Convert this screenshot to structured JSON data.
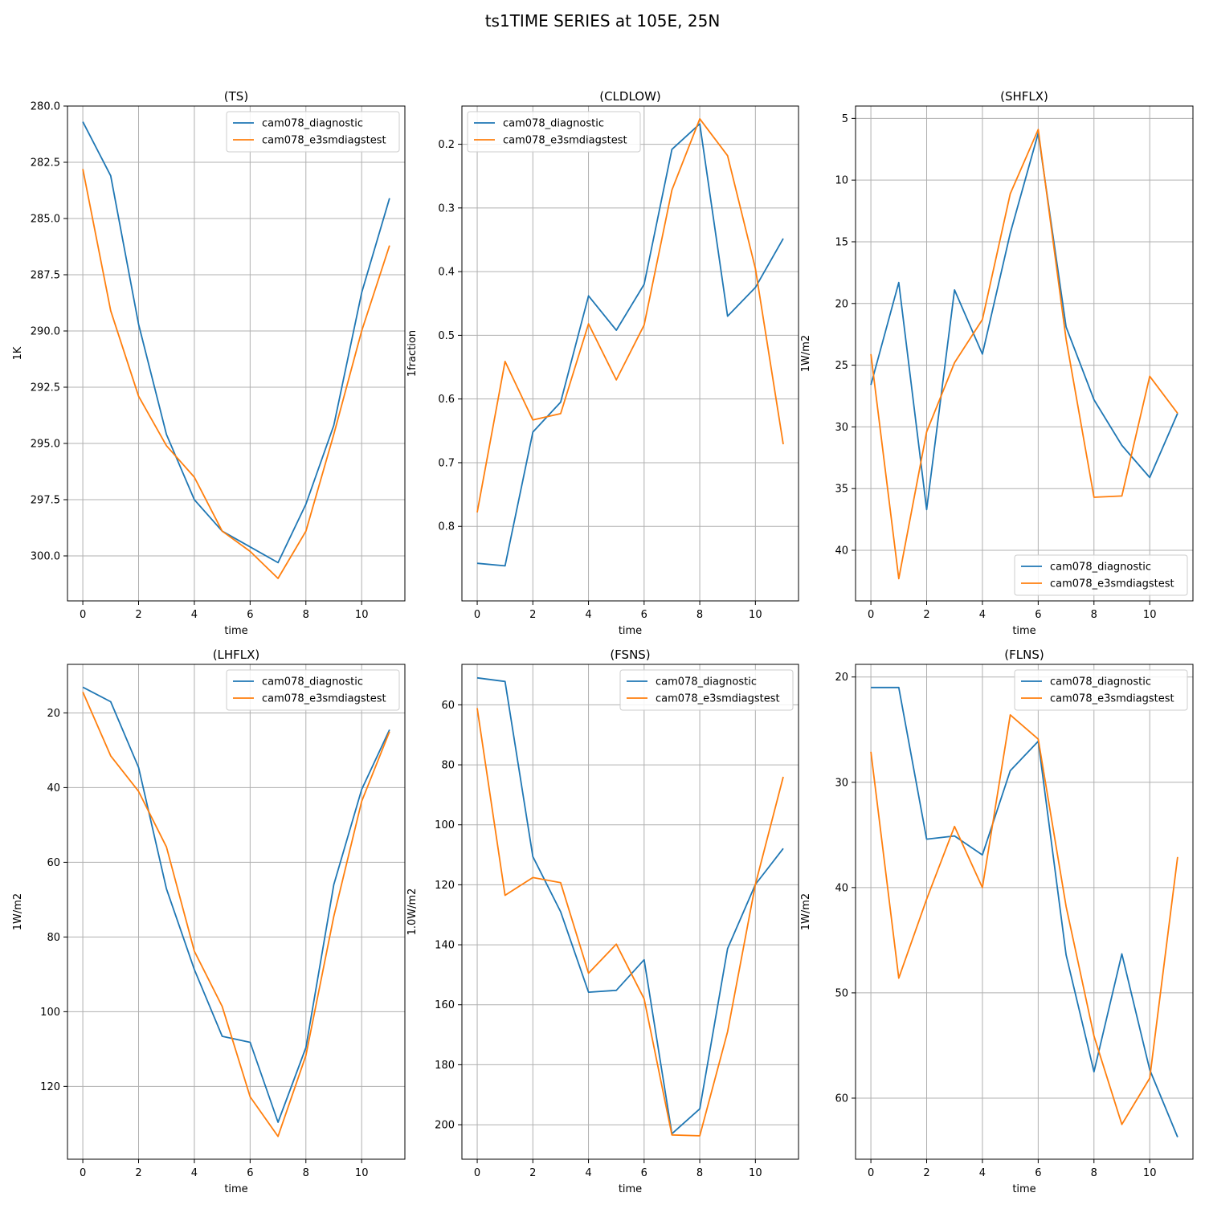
{
  "figure": {
    "suptitle": "ts1TIME SERIES at 105E, 25N"
  },
  "colors": {
    "cam078_diagnostic": "#1f77b4",
    "cam078_e3smdiagstest": "#ff7f0e",
    "grid": "#b0b0b0"
  },
  "chart_data": [
    {
      "type": "line",
      "title": "(TS)",
      "xlabel": "time",
      "ylabel": "1K",
      "y_inverted": true,
      "xlim": [
        -0.55,
        11.55
      ],
      "ylim": [
        280.0,
        302.0
      ],
      "x_ticks": [
        0,
        2,
        4,
        6,
        8,
        10
      ],
      "y_ticks": [
        280.0,
        282.5,
        285.0,
        287.5,
        290.0,
        292.5,
        295.0,
        297.5,
        300.0
      ],
      "y_tick_labels": [
        "280.0",
        "282.5",
        "285.0",
        "287.5",
        "290.0",
        "292.5",
        "295.0",
        "297.5",
        "300.0"
      ],
      "legend_loc": "upper right",
      "grid": true,
      "x": [
        0,
        1,
        2,
        3,
        4,
        5,
        6,
        7,
        8,
        9,
        10,
        11
      ],
      "series": [
        {
          "name": "cam078_diagnostic",
          "values": [
            280.7,
            283.1,
            289.7,
            294.6,
            297.5,
            298.9,
            299.6,
            300.3,
            297.7,
            294.2,
            288.3,
            284.1
          ]
        },
        {
          "name": "cam078_e3smdiagstest",
          "values": [
            282.8,
            289.1,
            292.9,
            295.1,
            296.5,
            298.9,
            299.8,
            301.0,
            298.9,
            294.6,
            290.0,
            286.2
          ]
        }
      ]
    },
    {
      "type": "line",
      "title": "(CLDLOW)",
      "xlabel": "time",
      "ylabel": "1fraction",
      "y_inverted": true,
      "xlim": [
        -0.55,
        11.55
      ],
      "ylim": [
        0.14,
        0.917
      ],
      "x_ticks": [
        0,
        2,
        4,
        6,
        8,
        10
      ],
      "y_ticks": [
        0.2,
        0.3,
        0.4,
        0.5,
        0.6,
        0.7,
        0.8
      ],
      "y_tick_labels": [
        "0.2",
        "0.3",
        "0.4",
        "0.5",
        "0.6",
        "0.7",
        "0.8"
      ],
      "legend_loc": "upper left",
      "grid": true,
      "x": [
        0,
        1,
        2,
        3,
        4,
        5,
        6,
        7,
        8,
        9,
        10,
        11
      ],
      "series": [
        {
          "name": "cam078_diagnostic",
          "values": [
            0.858,
            0.862,
            0.652,
            0.605,
            0.438,
            0.492,
            0.42,
            0.208,
            0.168,
            0.47,
            0.425,
            0.348
          ]
        },
        {
          "name": "cam078_e3smdiagstest",
          "values": [
            0.778,
            0.541,
            0.633,
            0.623,
            0.482,
            0.57,
            0.484,
            0.272,
            0.16,
            0.218,
            0.395,
            0.671
          ]
        }
      ]
    },
    {
      "type": "line",
      "title": "(SHFLX)",
      "xlabel": "time",
      "ylabel": "1W/m2",
      "y_inverted": true,
      "xlim": [
        -0.55,
        11.55
      ],
      "ylim": [
        4.0,
        44.1
      ],
      "x_ticks": [
        0,
        2,
        4,
        6,
        8,
        10
      ],
      "y_ticks": [
        5,
        10,
        15,
        20,
        25,
        30,
        35,
        40
      ],
      "y_tick_labels": [
        "5",
        "10",
        "15",
        "20",
        "25",
        "30",
        "35",
        "40"
      ],
      "legend_loc": "lower right",
      "grid": true,
      "x": [
        0,
        1,
        2,
        3,
        4,
        5,
        6,
        7,
        8,
        9,
        10,
        11
      ],
      "series": [
        {
          "name": "cam078_diagnostic",
          "values": [
            26.6,
            18.3,
            36.7,
            18.9,
            24.1,
            14.3,
            6.2,
            21.9,
            27.8,
            31.5,
            34.1,
            28.9
          ]
        },
        {
          "name": "cam078_e3smdiagstest",
          "values": [
            24.1,
            42.3,
            30.4,
            24.8,
            21.3,
            11.1,
            5.9,
            22.9,
            35.7,
            35.6,
            25.9,
            28.9
          ]
        }
      ]
    },
    {
      "type": "line",
      "title": "(LHFLX)",
      "xlabel": "time",
      "ylabel": "1W/m2",
      "y_inverted": true,
      "xlim": [
        -0.55,
        11.55
      ],
      "ylim": [
        7.0,
        139.5
      ],
      "x_ticks": [
        0,
        2,
        4,
        6,
        8,
        10
      ],
      "y_ticks": [
        20,
        40,
        60,
        80,
        100,
        120
      ],
      "y_tick_labels": [
        "20",
        "40",
        "60",
        "80",
        "100",
        "120"
      ],
      "legend_loc": "upper right",
      "grid": true,
      "x": [
        0,
        1,
        2,
        3,
        4,
        5,
        6,
        7,
        8,
        9,
        10,
        11
      ],
      "series": [
        {
          "name": "cam078_diagnostic",
          "values": [
            13.1,
            17.0,
            34.6,
            67.1,
            88.7,
            106.6,
            108.2,
            129.6,
            109.6,
            66.0,
            40.5,
            24.5
          ]
        },
        {
          "name": "cam078_e3smdiagstest",
          "values": [
            14.4,
            31.5,
            41.0,
            55.9,
            83.8,
            98.6,
            122.8,
            133.4,
            111.7,
            74.5,
            43.7,
            25.0
          ]
        }
      ]
    },
    {
      "type": "line",
      "title": "(FSNS)",
      "xlabel": "time",
      "ylabel": "1.0W/m2",
      "y_inverted": true,
      "xlim": [
        -0.55,
        11.55
      ],
      "ylim": [
        46.5,
        211.5
      ],
      "x_ticks": [
        0,
        2,
        4,
        6,
        8,
        10
      ],
      "y_ticks": [
        60,
        80,
        100,
        120,
        140,
        160,
        180,
        200
      ],
      "y_tick_labels": [
        "60",
        "80",
        "100",
        "120",
        "140",
        "160",
        "180",
        "200"
      ],
      "legend_loc": "upper right",
      "grid": true,
      "x": [
        0,
        1,
        2,
        3,
        4,
        5,
        6,
        7,
        8,
        9,
        10,
        11
      ],
      "series": [
        {
          "name": "cam078_diagnostic",
          "values": [
            51.0,
            52.2,
            110.6,
            129.0,
            155.8,
            155.2,
            145.0,
            203.0,
            194.7,
            141.3,
            119.9,
            107.9
          ]
        },
        {
          "name": "cam078_e3smdiagstest",
          "values": [
            61.1,
            123.5,
            117.6,
            119.3,
            149.5,
            139.8,
            158.0,
            203.4,
            203.7,
            169.0,
            119.9,
            84.0
          ]
        }
      ]
    },
    {
      "type": "line",
      "title": "(FLNS)",
      "xlabel": "time",
      "ylabel": "1W/m2",
      "y_inverted": true,
      "xlim": [
        -0.55,
        11.55
      ],
      "ylim": [
        18.8,
        65.8
      ],
      "x_ticks": [
        0,
        2,
        4,
        6,
        8,
        10
      ],
      "y_ticks": [
        20,
        30,
        40,
        50,
        60
      ],
      "y_tick_labels": [
        "20",
        "30",
        "40",
        "50",
        "60"
      ],
      "legend_loc": "upper right",
      "grid": true,
      "x": [
        0,
        1,
        2,
        3,
        4,
        5,
        6,
        7,
        8,
        9,
        10,
        11
      ],
      "series": [
        {
          "name": "cam078_diagnostic",
          "values": [
            21.0,
            21.0,
            35.4,
            35.1,
            36.9,
            28.9,
            26.1,
            46.4,
            57.5,
            46.3,
            57.3,
            63.7
          ]
        },
        {
          "name": "cam078_e3smdiagstest",
          "values": [
            27.1,
            48.6,
            41.1,
            34.2,
            40.0,
            23.6,
            25.9,
            41.8,
            54.1,
            62.5,
            58.1,
            37.1
          ]
        }
      ]
    }
  ]
}
